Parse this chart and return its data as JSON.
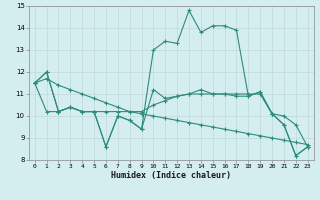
{
  "xlabel": "Humidex (Indice chaleur)",
  "x_values": [
    0,
    1,
    2,
    3,
    4,
    5,
    6,
    7,
    8,
    9,
    10,
    11,
    12,
    13,
    14,
    15,
    16,
    17,
    18,
    19,
    20,
    21,
    22,
    23
  ],
  "line1": [
    11.5,
    12.0,
    10.2,
    10.4,
    10.2,
    10.2,
    8.6,
    10.0,
    9.8,
    9.4,
    13.0,
    13.4,
    13.3,
    14.8,
    13.8,
    14.1,
    14.1,
    13.9,
    10.9,
    11.1,
    10.1,
    9.6,
    8.2,
    8.6
  ],
  "line2": [
    11.5,
    11.7,
    11.4,
    11.2,
    11.0,
    10.8,
    10.6,
    10.4,
    10.2,
    10.1,
    10.0,
    9.9,
    9.8,
    9.7,
    9.6,
    9.5,
    9.4,
    9.3,
    9.2,
    9.1,
    9.0,
    8.9,
    8.8,
    8.7
  ],
  "line3": [
    11.5,
    10.2,
    10.2,
    10.4,
    10.2,
    10.2,
    10.2,
    10.2,
    10.2,
    10.2,
    10.5,
    10.7,
    10.9,
    11.0,
    11.0,
    11.0,
    11.0,
    11.0,
    11.0,
    11.0,
    10.1,
    10.0,
    9.6,
    8.6
  ],
  "line4": [
    11.5,
    12.0,
    10.2,
    10.4,
    10.2,
    10.2,
    8.6,
    10.0,
    9.8,
    9.4,
    11.2,
    10.8,
    10.9,
    11.0,
    11.2,
    11.0,
    11.0,
    10.9,
    10.9,
    11.1,
    10.1,
    9.6,
    8.2,
    8.6
  ],
  "line_color": "#2e8b7a",
  "bg_color": "#d4eef0",
  "grid_color": "#c0d8da",
  "ylim": [
    8,
    15
  ],
  "xlim": [
    -0.5,
    23.5
  ],
  "yticks": [
    8,
    9,
    10,
    11,
    12,
    13,
    14,
    15
  ],
  "xticks": [
    0,
    1,
    2,
    3,
    4,
    5,
    6,
    7,
    8,
    9,
    10,
    11,
    12,
    13,
    14,
    15,
    16,
    17,
    18,
    19,
    20,
    21,
    22,
    23
  ]
}
